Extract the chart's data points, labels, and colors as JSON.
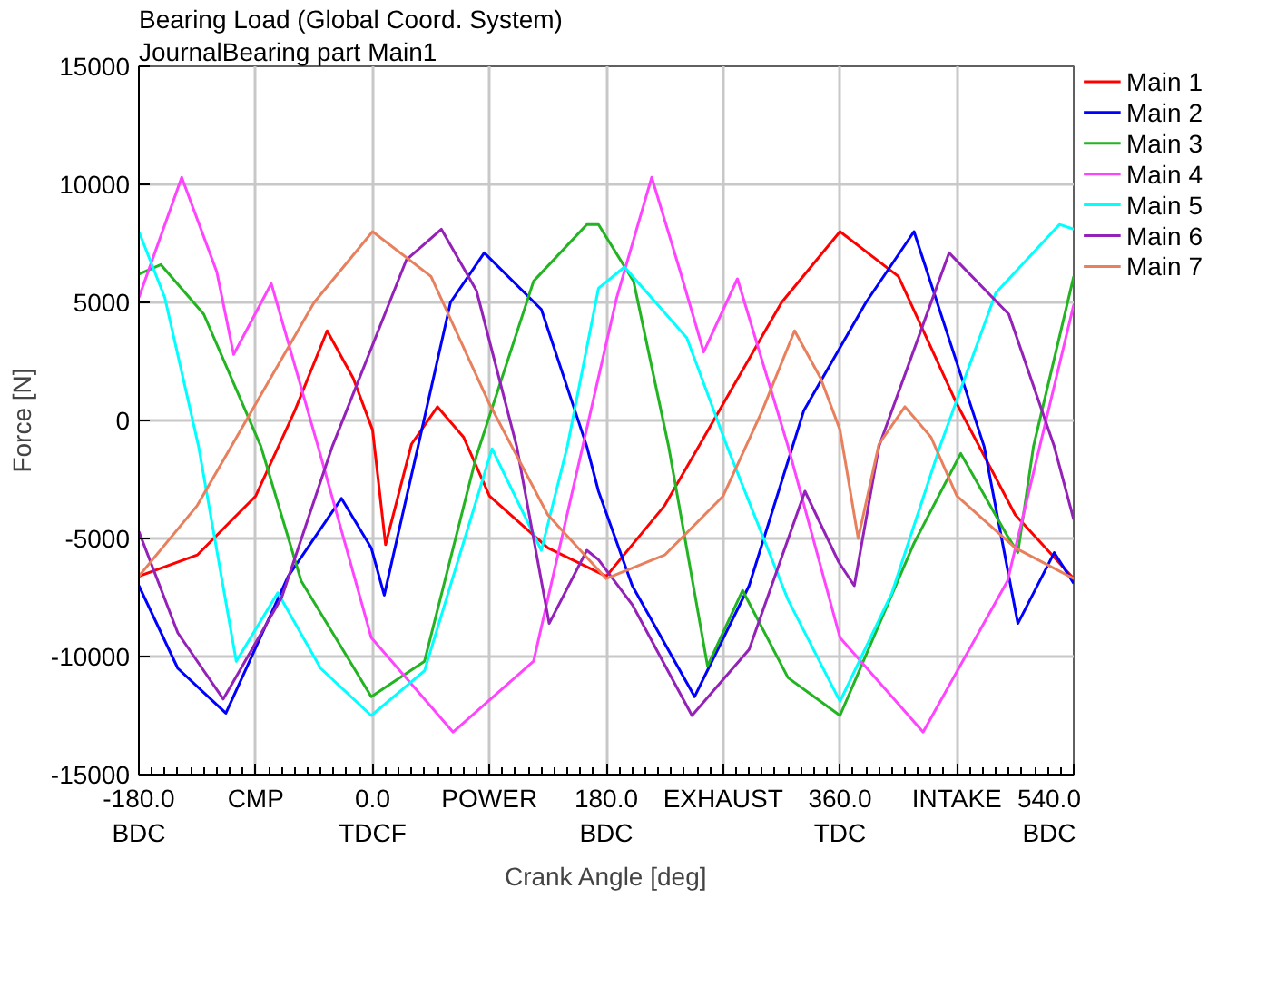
{
  "chart_data": {
    "type": "line",
    "title": "Bearing Load (Global Coord. System)",
    "subtitle": "JournalBearing part Main1",
    "xlabel": "Crank Angle [deg]",
    "ylabel": "Force [N]",
    "xlim": [
      -180,
      540
    ],
    "ylim": [
      -15000,
      15000
    ],
    "xticks": [
      {
        "value": -180,
        "label": "-180.0\nBDC"
      },
      {
        "value": -90,
        "label": "CMP"
      },
      {
        "value": 0,
        "label": "0.0\nTDCF"
      },
      {
        "value": 90,
        "label": "POWER"
      },
      {
        "value": 180,
        "label": "180.0\nBDC"
      },
      {
        "value": 270,
        "label": "EXHAUST"
      },
      {
        "value": 360,
        "label": "360.0\nTDC"
      },
      {
        "value": 450,
        "label": "INTAKE"
      },
      {
        "value": 540,
        "label": "540.0\nBDC"
      }
    ],
    "yticks": [
      -15000,
      -10000,
      -5000,
      0,
      5000,
      10000,
      15000
    ],
    "grid": true,
    "legend": "top right",
    "series": [
      {
        "name": "Main 1",
        "color": "#ff0000",
        "x": [
          -180,
          -135,
          -90,
          -60,
          -35,
          -15,
          0,
          10,
          30,
          50,
          70,
          90,
          135,
          180,
          225,
          270,
          315,
          360,
          405,
          450,
          495,
          540
        ],
        "values": [
          -6600,
          -5700,
          -3200,
          400,
          3800,
          1800,
          -400,
          -5260,
          -1000,
          580,
          -700,
          -3200,
          -5400,
          -6600,
          -3600,
          700,
          5000,
          8000,
          6100,
          700,
          -4000,
          -6700
        ]
      },
      {
        "name": "Main 2",
        "color": "#0000ff",
        "x": [
          -180,
          -150,
          -113,
          -65,
          -24,
          -1,
          9,
          35,
          60,
          86,
          130,
          165,
          174,
          200,
          248,
          290,
          332,
          380,
          417,
          471,
          497,
          525,
          540
        ],
        "values": [
          -7000,
          -10500,
          -12400,
          -6600,
          -3300,
          -5400,
          -7400,
          -1100,
          5000,
          7100,
          4700,
          -1100,
          -3000,
          -7000,
          -11700,
          -7000,
          400,
          5000,
          8000,
          -1100,
          -8600,
          -5600,
          -6900
        ]
      },
      {
        "name": "Main 3",
        "color": "#22b422",
        "x": [
          -180,
          -163,
          -130,
          -86,
          -55,
          -1,
          40,
          80,
          124,
          165,
          174,
          201,
          228,
          258,
          285,
          320,
          360,
          417,
          453,
          489,
          497,
          509,
          540
        ],
        "values": [
          6200,
          6600,
          4500,
          -1100,
          -6800,
          -11700,
          -10200,
          -1500,
          5900,
          8300,
          8300,
          5900,
          -1100,
          -10400,
          -7200,
          -10900,
          -12500,
          -5200,
          -1400,
          -4900,
          -5600,
          -1100,
          6100
        ]
      },
      {
        "name": "Main 4",
        "color": "#ff44ff",
        "x": [
          -180,
          -147,
          -120,
          -107,
          -78,
          -42,
          -1,
          62,
          124,
          188,
          215,
          237,
          255,
          281,
          320,
          360,
          424,
          489,
          540
        ],
        "values": [
          5200,
          10300,
          6300,
          2800,
          5800,
          -1100,
          -9200,
          -13200,
          -10200,
          5200,
          10300,
          6300,
          2900,
          6000,
          -1100,
          -9200,
          -13200,
          -6800,
          4900
        ]
      },
      {
        "name": "Main 5",
        "color": "#00ffff",
        "x": [
          -180,
          -160,
          -134,
          -105,
          -73,
          -40,
          -1,
          40,
          92,
          130,
          150,
          174,
          194,
          242,
          273,
          320,
          360,
          400,
          437,
          480,
          529,
          540
        ],
        "values": [
          8000,
          5200,
          -1100,
          -10200,
          -7300,
          -10500,
          -12500,
          -10600,
          -1200,
          -5500,
          -1100,
          5600,
          6500,
          3500,
          -1100,
          -7600,
          -11900,
          -7300,
          -1100,
          5400,
          8300,
          8100
        ]
      },
      {
        "name": "Main 6",
        "color": "#9422b8",
        "x": [
          -180,
          -150,
          -115,
          -70,
          -31,
          26,
          53,
          80,
          111,
          136,
          165,
          174,
          200,
          246,
          290,
          333,
          359,
          371,
          390,
          444,
          490,
          525,
          540
        ],
        "values": [
          -4700,
          -9000,
          -11800,
          -7500,
          -1100,
          6800,
          8100,
          5500,
          -1100,
          -8600,
          -5500,
          -5900,
          -7800,
          -12500,
          -9700,
          -3000,
          -6000,
          -7000,
          -1100,
          7100,
          4500,
          -1100,
          -4200
        ]
      },
      {
        "name": "Main 7",
        "color": "#e8805e",
        "x": [
          -180,
          -135,
          -90,
          -45,
          0,
          45,
          90,
          135,
          180,
          225,
          270,
          300,
          325,
          345,
          360,
          374,
          390,
          410,
          430,
          450,
          495,
          540
        ],
        "values": [
          -6600,
          -3600,
          700,
          5000,
          8000,
          6100,
          700,
          -4000,
          -6700,
          -5700,
          -3200,
          400,
          3800,
          1800,
          -400,
          -5000,
          -1000,
          580,
          -700,
          -3200,
          -5400,
          -6700
        ]
      }
    ]
  }
}
